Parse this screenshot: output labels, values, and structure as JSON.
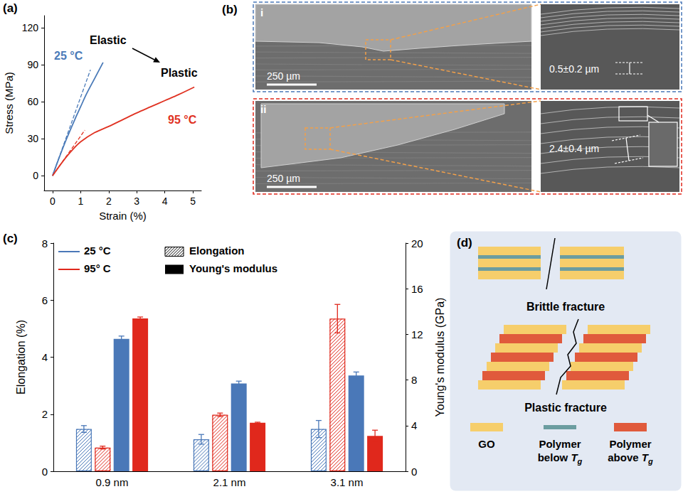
{
  "chart_data": [
    {
      "type": "line",
      "panel": "(a)",
      "x_label": "Strain (%)",
      "y_label": "Stress (MPa)",
      "xlim": [
        -0.3,
        5.3
      ],
      "xticks": [
        0,
        1,
        2,
        3,
        4,
        5
      ],
      "ylim": [
        -12,
        130
      ],
      "yticks": [
        0,
        30,
        60,
        90,
        120
      ],
      "grid": false,
      "annotations": [
        "Elastic",
        "Plastic"
      ],
      "series": [
        {
          "name": "25 °C",
          "color": "#4a7ab8",
          "x": [
            0,
            0.2,
            0.5,
            0.8,
            1.0,
            1.2,
            1.5,
            1.8
          ],
          "values": [
            0,
            12.5,
            30,
            46,
            56,
            66,
            79,
            92
          ]
        },
        {
          "name": "95 °C",
          "color": "#e03222",
          "x": [
            0,
            0.25,
            0.5,
            0.75,
            1.0,
            1.5,
            2.0,
            2.5,
            3.0,
            3.5,
            4.0,
            4.5,
            5.05
          ],
          "values": [
            0,
            8,
            15.5,
            22,
            27.5,
            35,
            40,
            45.5,
            51,
            56,
            61,
            66,
            72
          ]
        },
        {
          "color": "#4a7ab8",
          "line_style": "dashed",
          "x": [
            0,
            1.35
          ],
          "values": [
            0,
            86
          ]
        },
        {
          "color": "#e03222",
          "line_style": "dashed",
          "x": [
            0,
            1.15
          ],
          "values": [
            0,
            37
          ]
        }
      ]
    },
    {
      "type": "bar",
      "panel": "(c)",
      "categories": [
        "0.9 nm",
        "2.1 nm",
        "3.1 nm"
      ],
      "y_label": "Elongation (%)",
      "y2_label": "Young's modulus (GPa)",
      "ylim": [
        0,
        8
      ],
      "yticks": [
        0,
        2,
        4,
        6,
        8
      ],
      "y2lim": [
        0,
        20
      ],
      "y2ticks": [
        0,
        4,
        8,
        12,
        16,
        20
      ],
      "grid": false,
      "legend": "upper left",
      "series": [
        {
          "name": "25 °C",
          "measure": "Elongation",
          "color": "#4a78b8",
          "values": [
            1.48,
            1.12,
            1.48
          ],
          "errors": [
            0.12,
            0.17,
            0.3
          ]
        },
        {
          "name": "95° C",
          "measure": "Elongation",
          "color": "#e0281c",
          "values": [
            0.83,
            1.98,
            5.35
          ],
          "errors": [
            0.05,
            0.06,
            0.5
          ]
        },
        {
          "name": "25 °C",
          "measure": "Young's modulus",
          "axis": "y2",
          "color": "#4a78b8",
          "values": [
            11.6,
            7.7,
            8.4
          ],
          "errors": [
            0.25,
            0.2,
            0.3
          ]
        },
        {
          "name": "95° C",
          "measure": "Young's modulus",
          "axis": "y2",
          "color": "#e0281c",
          "values": [
            13.4,
            4.25,
            3.1
          ],
          "errors": [
            0.12,
            0.05,
            0.5
          ]
        }
      ]
    }
  ],
  "sem_images": {
    "panel": "(b)",
    "rows": [
      {
        "label": "i",
        "color": "#4a78b8",
        "scale_bar": "250 µm",
        "measurement": "0.5±0.2 µm"
      },
      {
        "label": "ii",
        "color": "#e0281c",
        "scale_bar": "250 µm",
        "measurement": "2.4±0.4 µm"
      }
    ]
  },
  "diagram": {
    "panel": "(d)",
    "top": "Brittle fracture",
    "bottom": "Plastic fracture",
    "key": [
      {
        "text": "GO",
        "color": "#f6ce6b"
      },
      {
        "text": "Polymer below",
        "math": "T",
        "subscript": "g",
        "color": "#6b9da0"
      },
      {
        "text": "Polymer above",
        "math": "T",
        "subscript": "g",
        "color": "#e05a3c"
      }
    ]
  }
}
